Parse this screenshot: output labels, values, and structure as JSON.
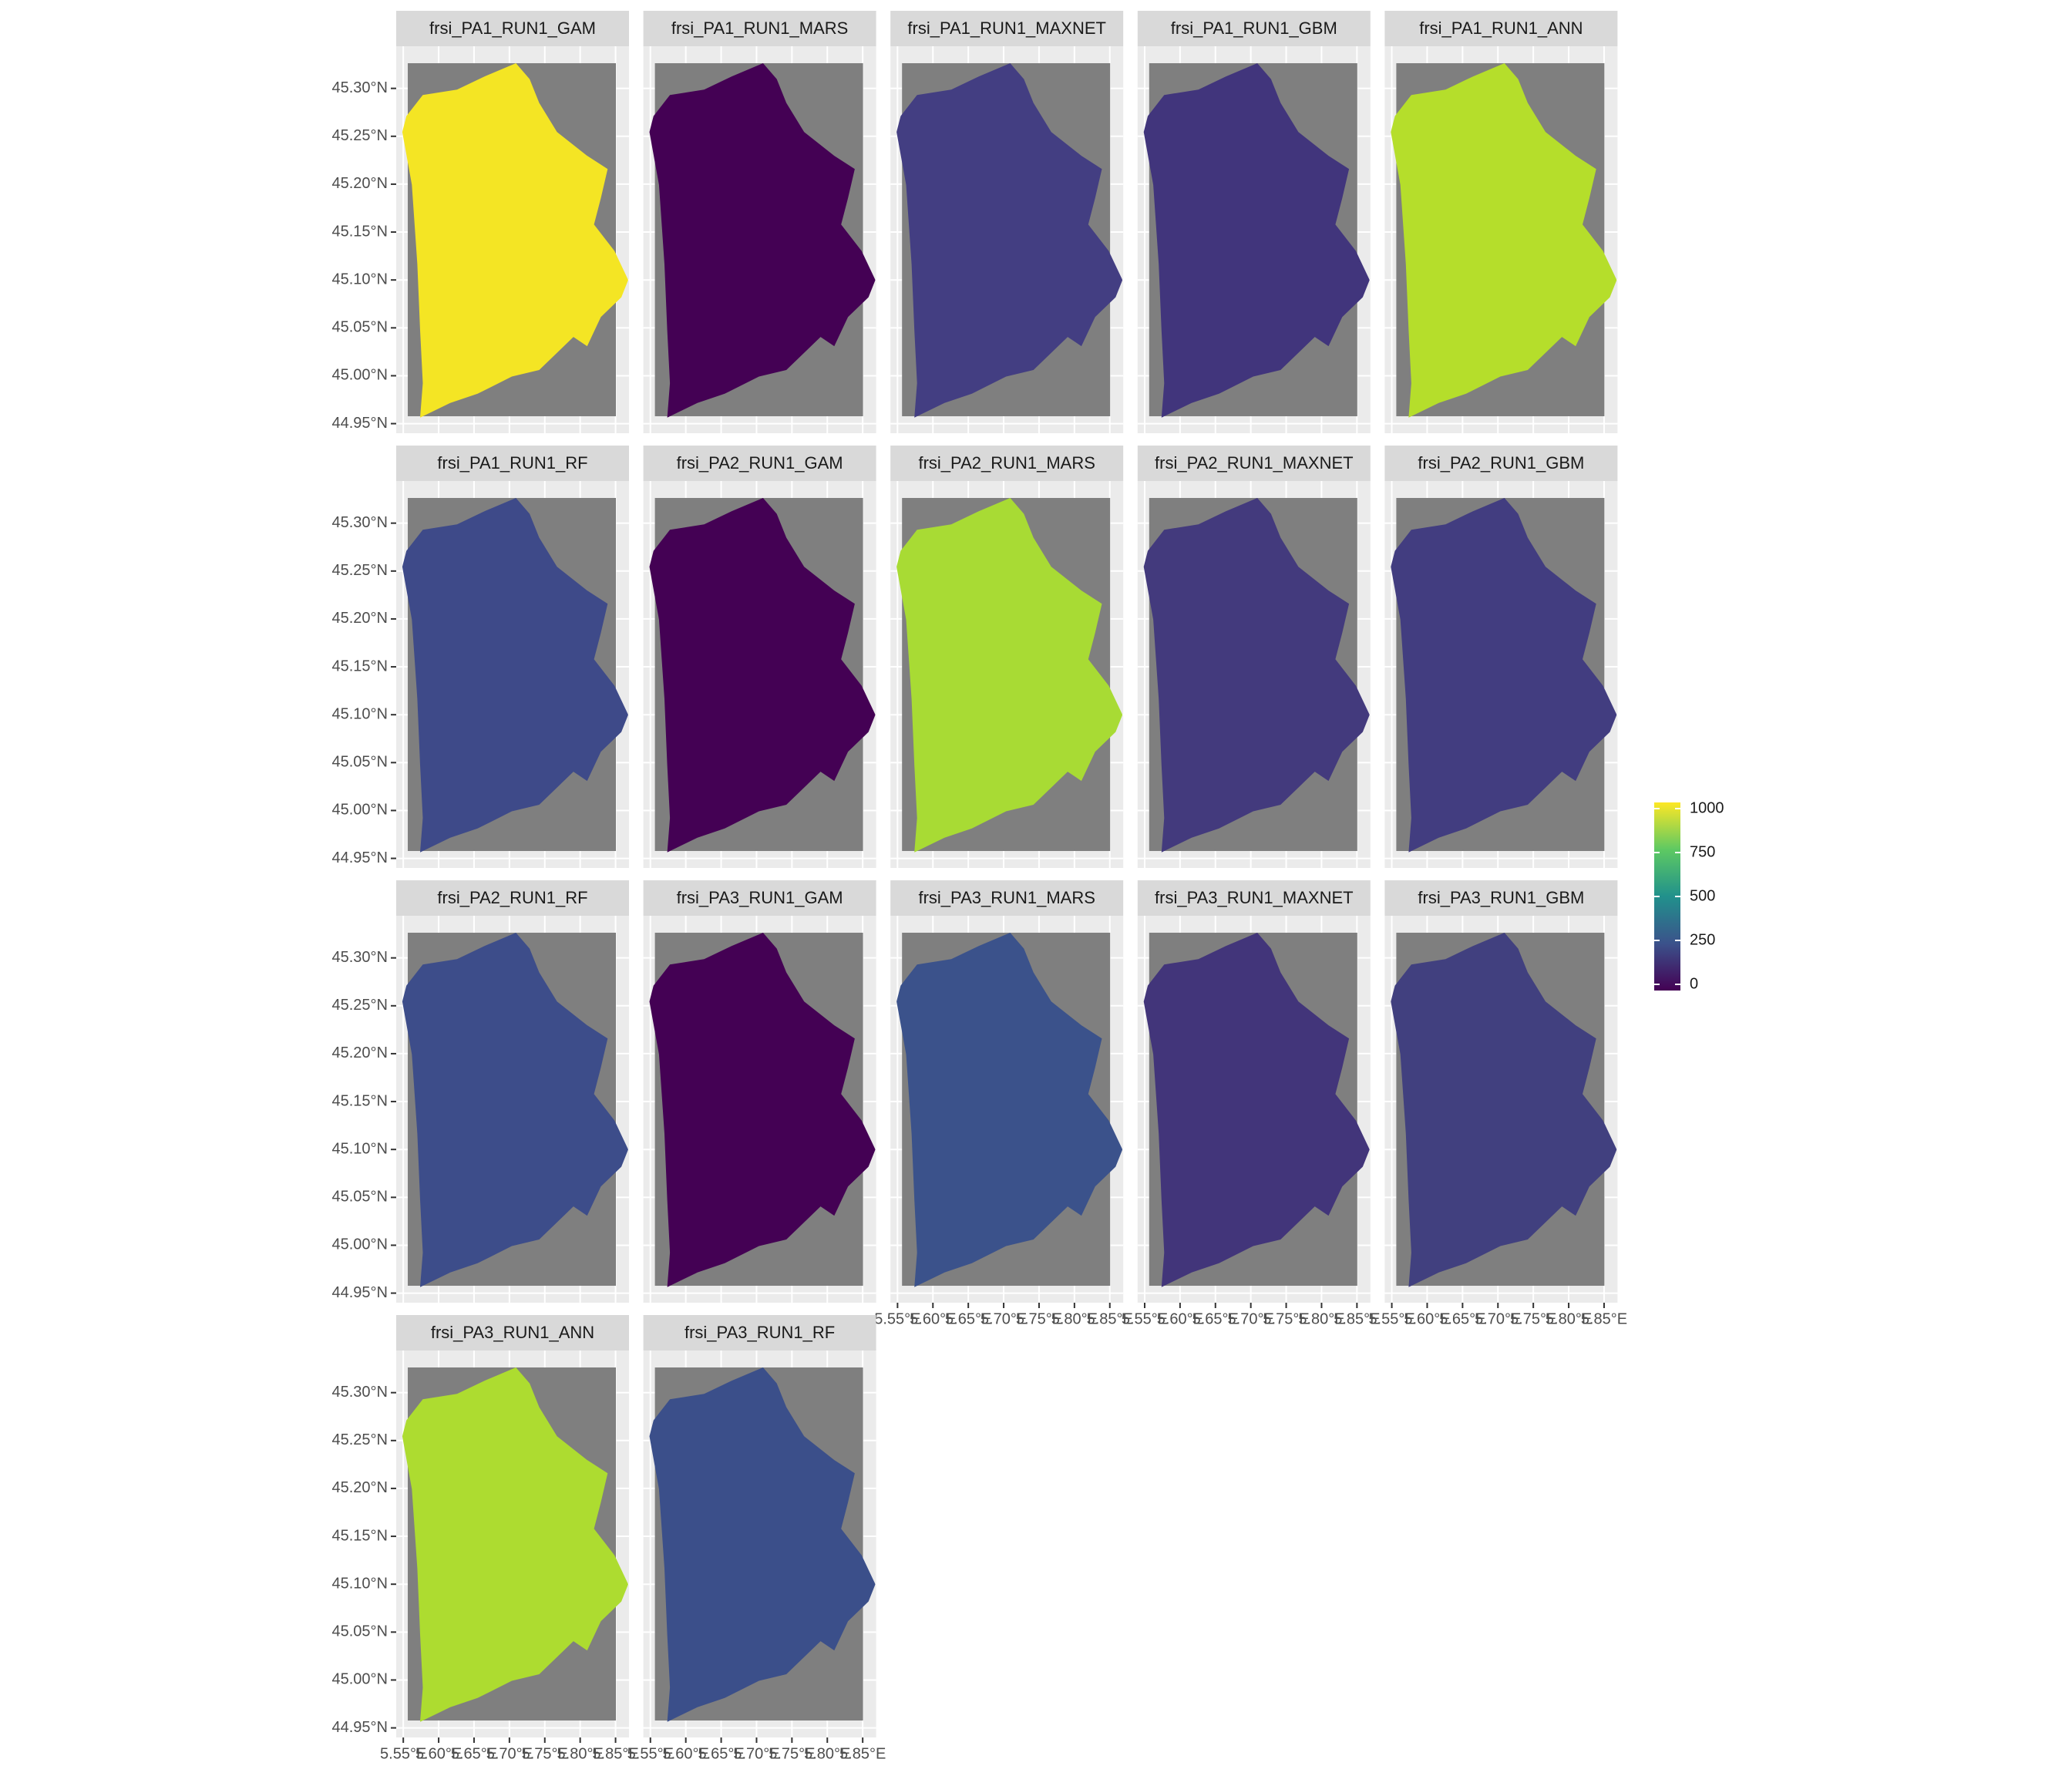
{
  "chart_data": {
    "type": "raster-facets",
    "panels": [
      {
        "title": "frsi_PA1_RUN1_GAM",
        "color": "#f4e524"
      },
      {
        "title": "frsi_PA1_RUN1_MARS",
        "color": "#440154"
      },
      {
        "title": "frsi_PA1_RUN1_MAXNET",
        "color": "#433e82"
      },
      {
        "title": "frsi_PA1_RUN1_GBM",
        "color": "#41357c"
      },
      {
        "title": "frsi_PA1_RUN1_ANN",
        "color": "#b5de2b"
      },
      {
        "title": "frsi_PA1_RUN1_RF",
        "color": "#3e4a89"
      },
      {
        "title": "frsi_PA2_RUN1_GAM",
        "color": "#440154"
      },
      {
        "title": "frsi_PA2_RUN1_MARS",
        "color": "#a8db34"
      },
      {
        "title": "frsi_PA2_RUN1_MAXNET",
        "color": "#433a7d"
      },
      {
        "title": "frsi_PA2_RUN1_GBM",
        "color": "#423d80"
      },
      {
        "title": "frsi_PA2_RUN1_RF",
        "color": "#3d4d8a"
      },
      {
        "title": "frsi_PA3_RUN1_GAM",
        "color": "#440154"
      },
      {
        "title": "frsi_PA3_RUN1_MARS",
        "color": "#3b528b"
      },
      {
        "title": "frsi_PA3_RUN1_MAXNET",
        "color": "#42357a"
      },
      {
        "title": "frsi_PA3_RUN1_GBM",
        "color": "#41407f"
      },
      {
        "title": "frsi_PA3_RUN1_ANN",
        "color": "#addc30"
      },
      {
        "title": "frsi_PA3_RUN1_RF",
        "color": "#3b4f8a"
      }
    ],
    "ylim": [
      44.94,
      45.344
    ],
    "yticks": [
      {
        "value": 44.95,
        "label": "44.95°N"
      },
      {
        "value": 45.0,
        "label": "45.00°N"
      },
      {
        "value": 45.05,
        "label": "45.05°N"
      },
      {
        "value": 45.1,
        "label": "45.10°N"
      },
      {
        "value": 45.15,
        "label": "45.15°N"
      },
      {
        "value": 45.2,
        "label": "45.20°N"
      },
      {
        "value": 45.25,
        "label": "45.25°N"
      },
      {
        "value": 45.3,
        "label": "45.30°N"
      }
    ],
    "xlim": [
      5.54,
      5.869
    ],
    "xticks": [
      {
        "value": 5.55,
        "label": "5.55°E"
      },
      {
        "value": 5.6,
        "label": "5.60°E"
      },
      {
        "value": 5.65,
        "label": "5.65°E"
      },
      {
        "value": 5.7,
        "label": "5.70°E"
      },
      {
        "value": 5.75,
        "label": "5.75°E"
      },
      {
        "value": 5.8,
        "label": "5.80°E"
      },
      {
        "value": 5.85,
        "label": "5.85°E"
      }
    ],
    "legend": {
      "colors": [
        "#440154",
        "#3b528b",
        "#21918c",
        "#5ec962",
        "#fde725"
      ],
      "ylim": [
        0,
        1000
      ],
      "ticks": [
        0,
        250,
        500,
        750,
        1000
      ]
    }
  }
}
